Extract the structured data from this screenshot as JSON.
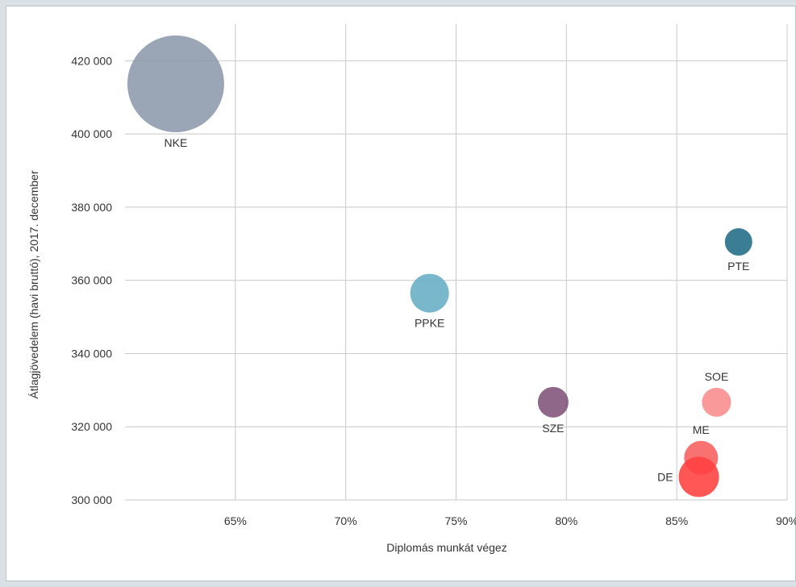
{
  "chart_data": {
    "type": "scatter",
    "title": "",
    "xlabel": "Diplomás munkát végez",
    "ylabel": "Átlagjövedelem (havi bruttó), 2017. december",
    "xlim": [
      60,
      90
    ],
    "ylim": [
      300000,
      430000
    ],
    "x_ticks": [
      65,
      70,
      75,
      80,
      85,
      90
    ],
    "x_tick_labels": [
      "65%",
      "70%",
      "75%",
      "80%",
      "85%",
      "90%"
    ],
    "y_ticks": [
      300000,
      320000,
      340000,
      360000,
      380000,
      400000,
      420000
    ],
    "y_tick_labels": [
      "300 000",
      "320 000",
      "340 000",
      "360 000",
      "380 000",
      "400 000",
      "420 000"
    ],
    "grid": true,
    "points": [
      {
        "label": "NKE",
        "x": 62.3,
        "y": 413700,
        "size": 60,
        "color": "#8c99ab",
        "label_pos": "below"
      },
      {
        "label": "PTE",
        "x": 87.8,
        "y": 370500,
        "size": 17,
        "color": "#1f6b85",
        "label_pos": "below"
      },
      {
        "label": "PPKE",
        "x": 73.8,
        "y": 356500,
        "size": 24,
        "color": "#66adc5",
        "label_pos": "below"
      },
      {
        "label": "SZE",
        "x": 79.4,
        "y": 326700,
        "size": 19,
        "color": "#7f5279",
        "label_pos": "below"
      },
      {
        "label": "SOE",
        "x": 86.8,
        "y": 326700,
        "size": 18,
        "color": "#f98b8c",
        "label_pos": "above"
      },
      {
        "label": "ME",
        "x": 86.1,
        "y": 311500,
        "size": 21,
        "color": "#f85e5e",
        "label_pos": "above"
      },
      {
        "label": "DE",
        "x": 86.0,
        "y": 306300,
        "size": 25,
        "color": "#ff3f3f",
        "label_pos": "left"
      }
    ]
  }
}
